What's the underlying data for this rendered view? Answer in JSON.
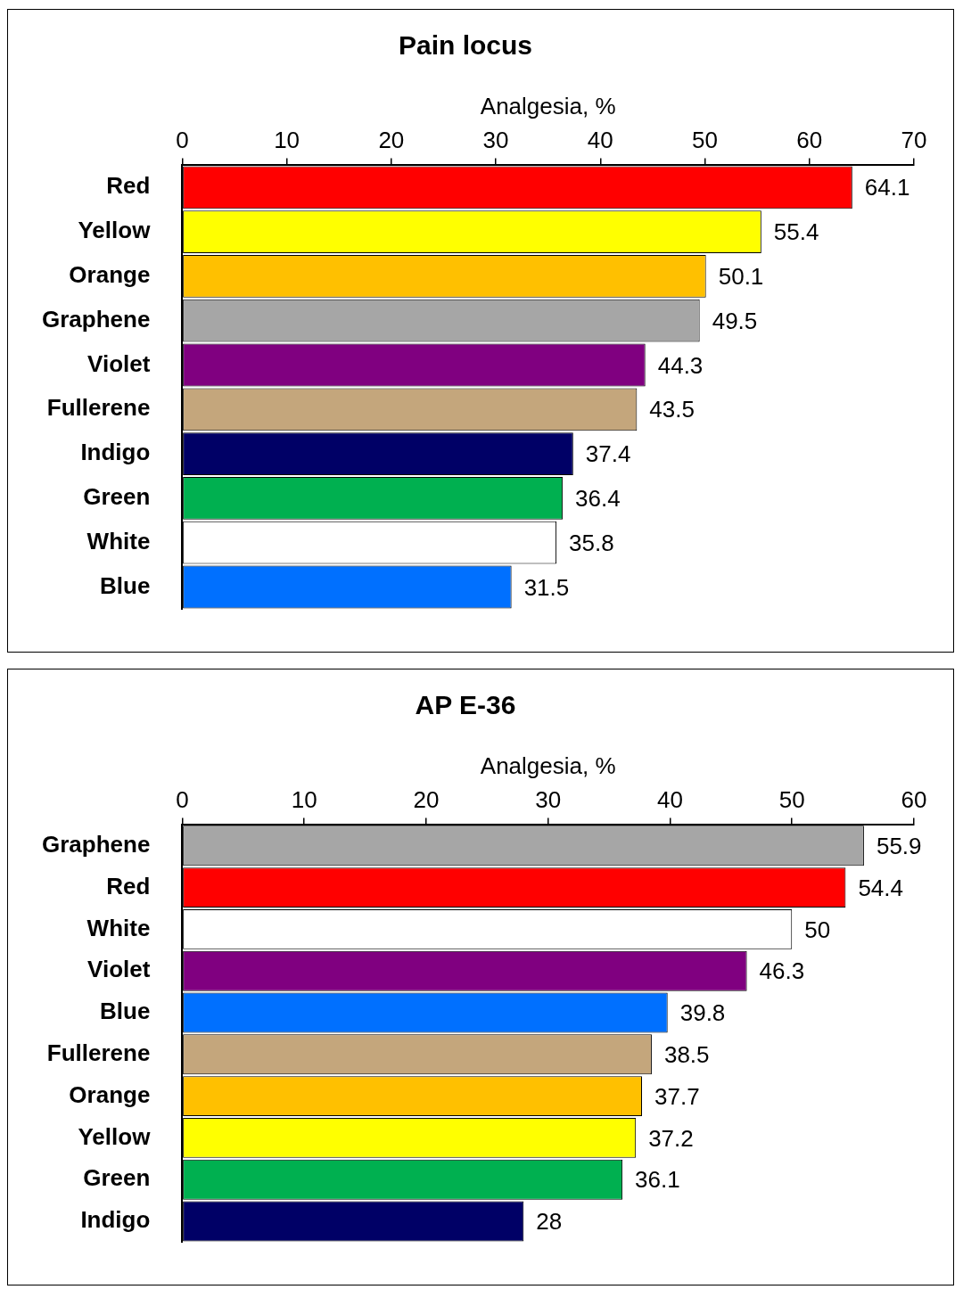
{
  "chart_data": [
    {
      "type": "bar",
      "orientation": "horizontal",
      "title": "Pain locus",
      "xlabel": "Analgesia, %",
      "categories": [
        "Red",
        "Yellow",
        "Orange",
        "Graphene",
        "Violet",
        "Fullerene",
        "Indigo",
        "Green",
        "White",
        "Blue"
      ],
      "values": [
        64.1,
        55.4,
        50.1,
        49.5,
        44.3,
        43.5,
        37.4,
        36.4,
        35.8,
        31.5
      ],
      "colors": [
        "#ff0000",
        "#ffff00",
        "#ffc000",
        "#a6a6a6",
        "#800080",
        "#c4a67c",
        "#000066",
        "#00b050",
        "#ffffff",
        "#0070ff"
      ],
      "xlim": [
        0,
        70
      ],
      "xticks": [
        0,
        10,
        20,
        30,
        40,
        50,
        60,
        70
      ],
      "data_labels": true,
      "grid": false,
      "legend": false
    },
    {
      "type": "bar",
      "orientation": "horizontal",
      "title": "AP E-36",
      "xlabel": "Analgesia, %",
      "categories": [
        "Graphene",
        "Red",
        "White",
        "Violet",
        "Blue",
        "Fullerene",
        "Orange",
        "Yellow",
        "Green",
        "Indigo"
      ],
      "values": [
        55.9,
        54.4,
        50,
        46.3,
        39.8,
        38.5,
        37.7,
        37.2,
        36.1,
        28
      ],
      "colors": [
        "#a6a6a6",
        "#ff0000",
        "#ffffff",
        "#800080",
        "#0070ff",
        "#c4a67c",
        "#ffc000",
        "#ffff00",
        "#00b050",
        "#000066"
      ],
      "xlim": [
        0,
        60
      ],
      "xticks": [
        0,
        10,
        20,
        30,
        40,
        50,
        60
      ],
      "data_labels": true,
      "grid": false,
      "legend": false
    }
  ]
}
